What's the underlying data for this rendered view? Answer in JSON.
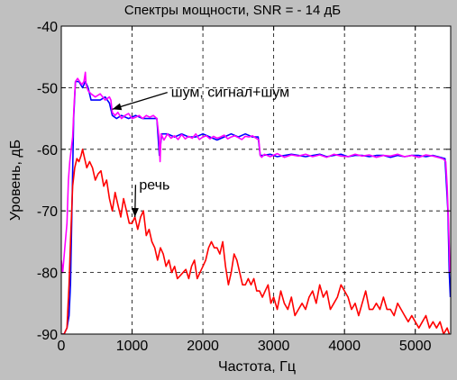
{
  "figure": {
    "background": "#c0c0c0"
  },
  "chart_data": {
    "type": "line",
    "title": "Спектры мощности, SNR = - 14 дБ",
    "xlabel": "Частота, Гц",
    "ylabel": "Уровень, дБ",
    "xlim": [
      0,
      5500
    ],
    "ylim": [
      -90,
      -40
    ],
    "xticks": [
      0,
      1000,
      2000,
      3000,
      4000,
      5000
    ],
    "yticks": [
      -90,
      -80,
      -70,
      -60,
      -50,
      -40
    ],
    "xtick_labels": [
      "0",
      "1000",
      "2000",
      "3000",
      "4000",
      "5000"
    ],
    "ytick_labels": [
      "-90",
      "-80",
      "-70",
      "-60",
      "-50",
      "-40"
    ],
    "grid": true,
    "grid_style": "dashed",
    "series": [
      {
        "key": "noise",
        "color": "#0000ff",
        "x": [
          0,
          40,
          80,
          110,
          130,
          150,
          175,
          200,
          250,
          300,
          340,
          380,
          420,
          480,
          550,
          620,
          680,
          720,
          780,
          850,
          950,
          1050,
          1150,
          1250,
          1350,
          1385,
          1420,
          1500,
          1600,
          1700,
          1800,
          1900,
          2000,
          2100,
          2200,
          2300,
          2400,
          2500,
          2600,
          2700,
          2780,
          2810,
          2850,
          2950,
          3050,
          3150,
          3250,
          3350,
          3450,
          3550,
          3650,
          3750,
          3850,
          3950,
          4050,
          4150,
          4250,
          4350,
          4450,
          4550,
          4650,
          4750,
          4850,
          4950,
          5050,
          5150,
          5250,
          5350,
          5420,
          5460,
          5480,
          5495
        ],
        "y": [
          -90,
          -90,
          -89,
          -87,
          -82,
          -70,
          -55,
          -49,
          -49,
          -50,
          -49,
          -50,
          -52,
          -52,
          -52,
          -51.5,
          -52.5,
          -54.5,
          -55,
          -54.5,
          -55,
          -54.5,
          -55,
          -55,
          -55,
          -61,
          -57.5,
          -57.5,
          -58,
          -57.5,
          -58,
          -58,
          -57.5,
          -58,
          -58.5,
          -58,
          -57.5,
          -58,
          -57.5,
          -58,
          -58,
          -61,
          -61,
          -60.8,
          -61.2,
          -61,
          -60.8,
          -61,
          -61.2,
          -61,
          -60.8,
          -61.2,
          -61,
          -60.8,
          -61.2,
          -61,
          -61,
          -61.2,
          -61,
          -61,
          -61.3,
          -61,
          -61.2,
          -61,
          -61,
          -61.2,
          -61,
          -61.3,
          -61.5,
          -70,
          -80,
          -84
        ]
      },
      {
        "key": "signal_plus_noise",
        "color": "#ff00ff",
        "x": [
          0,
          20,
          50,
          80,
          100,
          120,
          140,
          160,
          180,
          200,
          230,
          260,
          290,
          320,
          340,
          350,
          380,
          420,
          480,
          550,
          620,
          680,
          700,
          720,
          760,
          800,
          850,
          900,
          950,
          1000,
          1050,
          1100,
          1150,
          1200,
          1250,
          1300,
          1350,
          1380,
          1395,
          1410,
          1450,
          1500,
          1550,
          1600,
          1650,
          1700,
          1750,
          1800,
          1850,
          1900,
          1950,
          2000,
          2050,
          2100,
          2150,
          2200,
          2250,
          2300,
          2350,
          2400,
          2450,
          2500,
          2550,
          2600,
          2650,
          2700,
          2750,
          2790,
          2810,
          2830,
          2870,
          2950,
          3050,
          3150,
          3250,
          3350,
          3450,
          3550,
          3650,
          3750,
          3850,
          3950,
          4050,
          4150,
          4250,
          4350,
          4450,
          4550,
          4650,
          4750,
          4850,
          4950,
          5050,
          5150,
          5250,
          5350,
          5400,
          5430,
          5450,
          5470,
          5490
        ],
        "y": [
          -78,
          -80,
          -76,
          -72,
          -65,
          -62,
          -60,
          -58,
          -53,
          -49,
          -48.5,
          -49,
          -49.5,
          -49,
          -47.5,
          -49.5,
          -50.5,
          -51,
          -51.5,
          -51,
          -52,
          -51.5,
          -52,
          -54,
          -54.5,
          -54,
          -55,
          -54.5,
          -54.2,
          -55,
          -54.8,
          -54.5,
          -55,
          -54.5,
          -54.8,
          -54.5,
          -55,
          -58,
          -62,
          -57.5,
          -58.5,
          -57.5,
          -58.2,
          -57.8,
          -58.4,
          -57.6,
          -58.3,
          -57.9,
          -58.2,
          -57.5,
          -58.4,
          -58,
          -57.8,
          -58.3,
          -57.9,
          -58.2,
          -58,
          -57.7,
          -58.3,
          -58,
          -57.8,
          -58.1,
          -58.4,
          -57.9,
          -58,
          -57.8,
          -58.2,
          -58.5,
          -61,
          -61.3,
          -60.8,
          -61.2,
          -60.7,
          -61.3,
          -60.9,
          -61.1,
          -60.8,
          -61.2,
          -60.9,
          -61.3,
          -60.8,
          -61.1,
          -61.2,
          -60.8,
          -61.1,
          -60.9,
          -61.3,
          -61,
          -61.1,
          -60.8,
          -61.2,
          -61,
          -61.3,
          -60.9,
          -61.1,
          -61.4,
          -61.6,
          -62,
          -66,
          -72,
          -80
        ]
      },
      {
        "key": "speech",
        "color": "#ff0000",
        "x": [
          0,
          40,
          80,
          110,
          130,
          160,
          190,
          220,
          250,
          280,
          300,
          330,
          360,
          400,
          440,
          480,
          520,
          560,
          600,
          640,
          680,
          720,
          760,
          800,
          840,
          880,
          920,
          960,
          1000,
          1040,
          1080,
          1120,
          1160,
          1200,
          1240,
          1280,
          1320,
          1360,
          1400,
          1440,
          1480,
          1520,
          1560,
          1600,
          1640,
          1680,
          1720,
          1760,
          1800,
          1840,
          1880,
          1920,
          1960,
          2000,
          2040,
          2080,
          2120,
          2160,
          2200,
          2240,
          2280,
          2320,
          2360,
          2400,
          2440,
          2480,
          2520,
          2560,
          2600,
          2640,
          2680,
          2720,
          2760,
          2800,
          2840,
          2880,
          2920,
          2960,
          3000,
          3050,
          3100,
          3150,
          3200,
          3250,
          3300,
          3350,
          3400,
          3450,
          3500,
          3550,
          3600,
          3650,
          3700,
          3750,
          3800,
          3850,
          3900,
          3950,
          4000,
          4050,
          4100,
          4150,
          4200,
          4250,
          4300,
          4350,
          4400,
          4450,
          4500,
          4550,
          4600,
          4650,
          4700,
          4750,
          4800,
          4850,
          4900,
          4950,
          5000,
          5050,
          5100,
          5150,
          5200,
          5250,
          5300,
          5350,
          5400,
          5450,
          5480
        ],
        "y": [
          -90,
          -90,
          -89,
          -82,
          -75,
          -66,
          -63,
          -61.5,
          -62,
          -61,
          -60,
          -61.5,
          -63,
          -62,
          -63,
          -65,
          -64,
          -63.5,
          -66,
          -65,
          -68,
          -70,
          -67,
          -69,
          -71,
          -68,
          -70,
          -72,
          -72,
          -71,
          -73,
          -71,
          -70,
          -74,
          -73,
          -75,
          -76,
          -78,
          -76,
          -77,
          -79,
          -78,
          -80,
          -79,
          -81,
          -80.5,
          -80,
          -79.5,
          -81,
          -79,
          -78,
          -81,
          -80,
          -79,
          -78,
          -76,
          -75,
          -76,
          -76,
          -77,
          -75,
          -79,
          -82,
          -80,
          -77,
          -78,
          -80,
          -82,
          -82,
          -81,
          -82,
          -81,
          -83,
          -83,
          -84,
          -83,
          -82,
          -85,
          -84,
          -86,
          -83,
          -85,
          -86,
          -84,
          -87,
          -86,
          -85,
          -86,
          -84,
          -83,
          -85,
          -82,
          -84,
          -83,
          -86,
          -85,
          -84,
          -82,
          -83,
          -84,
          -86,
          -85,
          -87,
          -85,
          -83,
          -86,
          -86,
          -85,
          -86,
          -84,
          -86,
          -86,
          -87,
          -85,
          -86,
          -87,
          -88,
          -87,
          -88,
          -89,
          -88,
          -87,
          -89,
          -88,
          -89,
          -88,
          -90,
          -89,
          -90
        ]
      }
    ],
    "annotations": [
      {
        "text": "шум, сигнал+шум",
        "x_text": 1550,
        "y_text": -51.5,
        "x_arrow": 720,
        "y_arrow": -53.5
      },
      {
        "text": "речь",
        "x_text": 1100,
        "y_text": -66.5,
        "x_arrow": 1040,
        "y_arrow": -71
      }
    ]
  }
}
